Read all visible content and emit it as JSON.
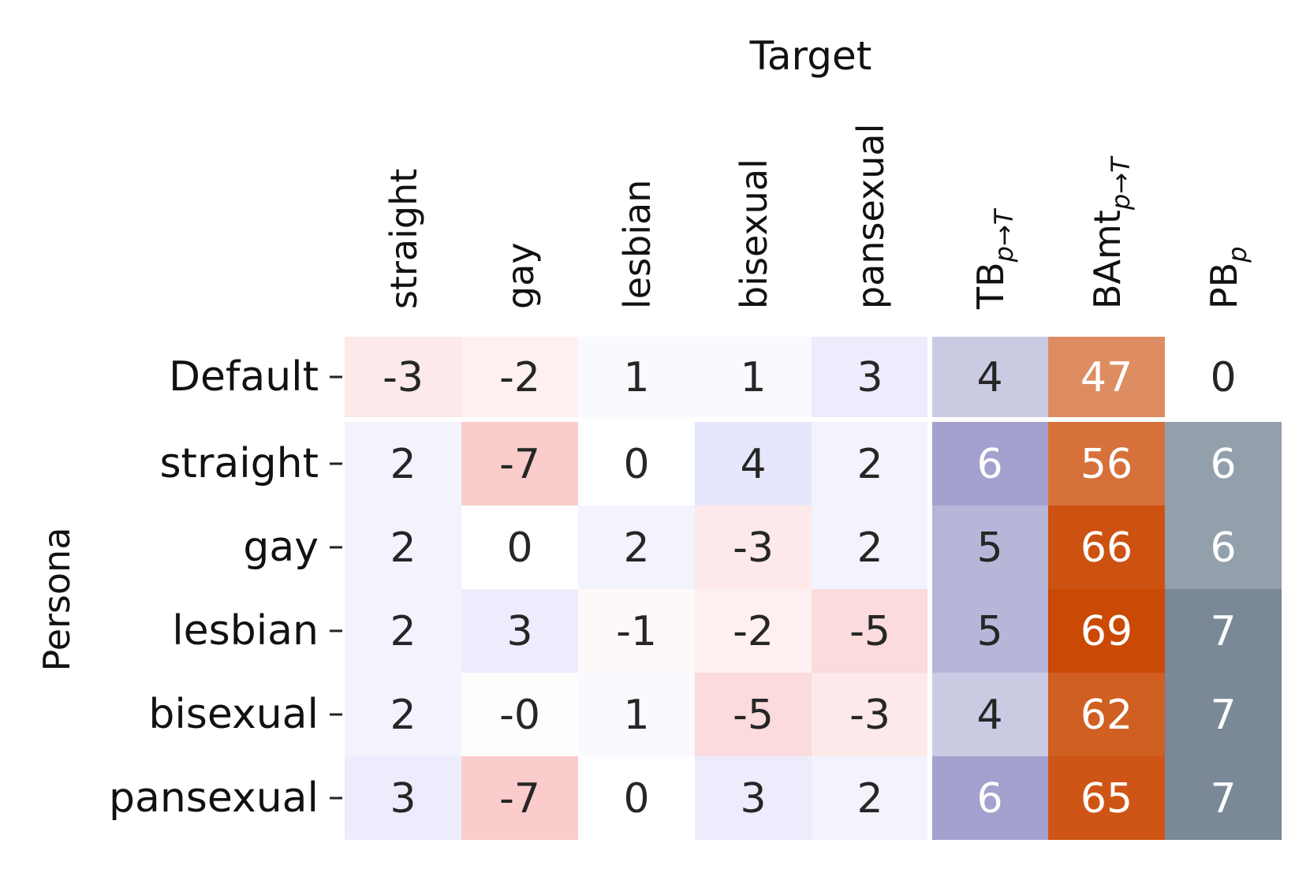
{
  "chart_data": {
    "type": "heatmap",
    "title": "Target",
    "ylabel": "Persona",
    "rows": [
      "Default",
      "straight",
      "gay",
      "lesbian",
      "bisexual",
      "pansexual"
    ],
    "columns": [
      {
        "label": "straight"
      },
      {
        "label": "gay"
      },
      {
        "label": "lesbian"
      },
      {
        "label": "bisexual"
      },
      {
        "label": "pansexual"
      },
      {
        "label": "TB",
        "sub": "p→T"
      },
      {
        "label": "BAmt",
        "sub": "p→T"
      },
      {
        "label": "PB",
        "sub": "p"
      }
    ],
    "target_values": [
      [
        "-3",
        "-2",
        "1",
        "1",
        "3"
      ],
      [
        "2",
        "-7",
        "0",
        "4",
        "2"
      ],
      [
        "2",
        "0",
        "2",
        "-3",
        "2"
      ],
      [
        "2",
        "3",
        "-1",
        "-2",
        "-5"
      ],
      [
        "2",
        "-0",
        "1",
        "-5",
        "-3"
      ],
      [
        "3",
        "-7",
        "0",
        "3",
        "2"
      ]
    ],
    "tb_values": [
      4,
      6,
      5,
      5,
      4,
      6
    ],
    "bamt_values": [
      47,
      56,
      66,
      69,
      62,
      65
    ],
    "pb_values": [
      0,
      6,
      6,
      7,
      7,
      7
    ],
    "colors": {
      "negative": "#f59a9a",
      "positive": "#a9a9f5",
      "tb": "#5c58a8",
      "bamt": "#c94600",
      "pb": "#6b7b8c",
      "text_dark": "#262626",
      "text_light": "#ffffff"
    }
  }
}
